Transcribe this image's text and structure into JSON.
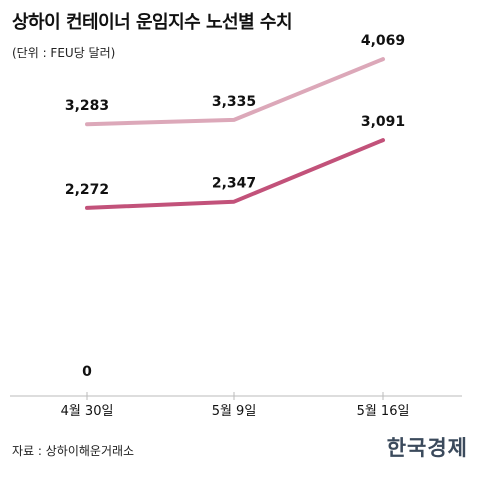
{
  "header": {
    "title": "상하이 컨테이너 운임지수 노선별 수치",
    "subtitle": "(단위 : FEU당 달러)"
  },
  "footer": {
    "source": "자료 : 상하이해운거래소",
    "brand": "한국경제"
  },
  "chart_data": {
    "type": "line",
    "categories": [
      "4월 30일",
      "5월 9일",
      "5월 16일"
    ],
    "series": [
      {
        "values": [
          3283,
          3335,
          4069
        ],
        "labels": [
          "3,283",
          "3,335",
          "4,069"
        ],
        "color": "#dca8b9"
      },
      {
        "values": [
          2272,
          2347,
          3091
        ],
        "labels": [
          "2,272",
          "2,347",
          "3,091"
        ],
        "color": "#c2527a"
      }
    ],
    "baseline_label": "0",
    "ylim": [
      0,
      4300
    ],
    "grid": false,
    "legend": "none"
  }
}
